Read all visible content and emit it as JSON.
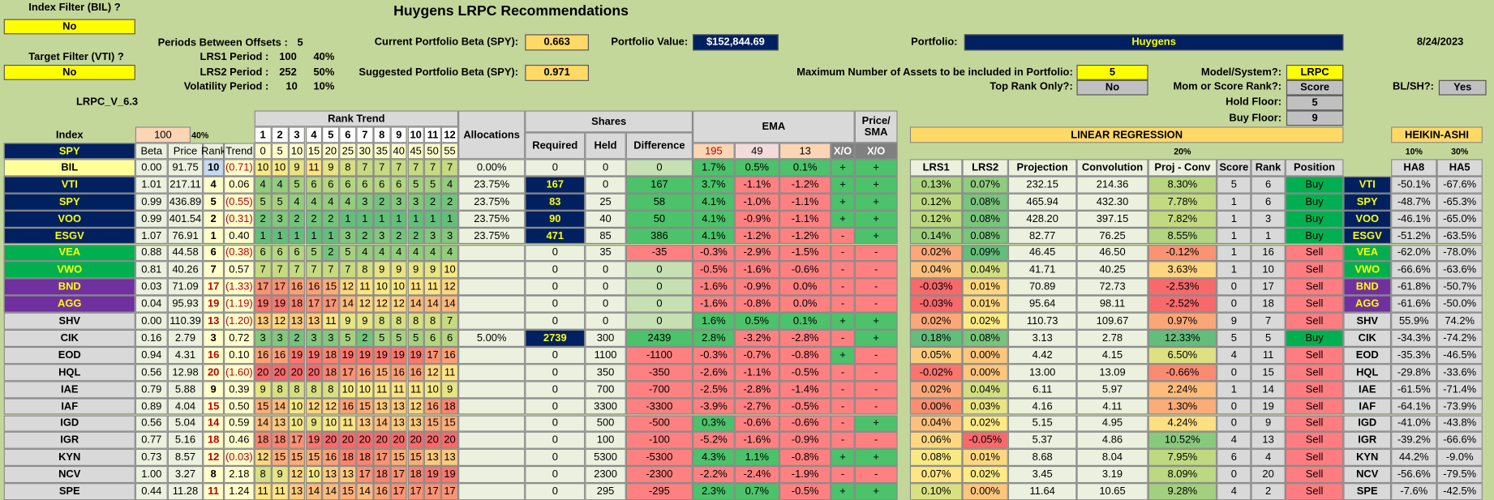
{
  "header": {
    "title": "Huygens LRPC Recommendations",
    "index_filter_label": "Index Filter (BIL) ?",
    "index_filter": "No",
    "target_filter_label": "Target Filter (VTI) ?",
    "target_filter": "No",
    "version": "LRPC_V_6.3",
    "periods_label": "Periods Between Offsets :",
    "periods": "5",
    "lrs1_label": "LRS1 Period :",
    "lrs1_period": "100",
    "lrs1_weight": "40%",
    "lrs2_label": "LRS2 Period :",
    "lrs2_period": "252",
    "lrs2_weight": "50%",
    "vol_label": "Volatility Period :",
    "vol_period": "10",
    "vol_weight": "10%",
    "current_beta_label": "Current Portfolio Beta (SPY):",
    "current_beta": "0.663",
    "suggested_beta_label": "Suggested Portfolio Beta (SPY):",
    "suggested_beta": "0.971",
    "value_label": "Portfolio Value:",
    "value": "$152,844.69",
    "portfolio_label": "Portfolio:",
    "portfolio": "Huygens",
    "date": "8/24/2023",
    "max_assets_label": "Maximum Number of Assets to be included in Portfolio:",
    "max_assets": "5",
    "top_rank_label": "Top Rank Only?:",
    "top_rank": "No",
    "model_label": "Model/System?:",
    "model": "LRPC",
    "mom_label": "Mom or Score Rank?:",
    "mom": "Score",
    "hold_floor_label": "Hold Floor:",
    "hold_floor": "5",
    "buy_floor_label": "Buy Floor:",
    "buy_floor": "9",
    "blsh_label": "BL/SH?:",
    "blsh": "Yes"
  },
  "table": {
    "headers": {
      "index": "Index",
      "index_value": "100",
      "index_pct": "40%",
      "spy": "SPY",
      "beta": "Beta",
      "price": "Price",
      "rank": "Rank",
      "trend": "Trend",
      "rank_trend": "Rank Trend",
      "periods": [
        "1",
        "2",
        "3",
        "4",
        "5",
        "6",
        "7",
        "8",
        "9",
        "10",
        "11",
        "12"
      ],
      "offsets": [
        "0",
        "5",
        "10",
        "15",
        "20",
        "25",
        "30",
        "35",
        "40",
        "45",
        "50",
        "55"
      ],
      "allocations": "Allocations",
      "shares": "Shares",
      "required": "Required",
      "held": "Held",
      "difference": "Difference",
      "ema": "EMA",
      "ema_periods": [
        "195",
        "49",
        "13"
      ],
      "xo": "X/O",
      "price_sma": "Price/ SMA",
      "sma_xo": "X/O",
      "linear_regression": "LINEAR REGRESSION",
      "lr_pct": "20%",
      "heikin_ashi": "HEIKIN-ASHI",
      "ha_pcts": [
        "10%",
        "30%"
      ],
      "right": [
        "LRS1",
        "LRS2",
        "Projection",
        "Convolution",
        "Proj - Conv",
        "Score",
        "Rank",
        "Position"
      ],
      "ha": [
        "HA8",
        "HA5"
      ]
    },
    "rows": [
      {
        "n": "BIL",
        "color": "#ffff99",
        "beta": "0.00",
        "price": "91.75",
        "rank": 10,
        "trend": "(0.71)",
        "rt": [
          10,
          10,
          9,
          11,
          9,
          8,
          7,
          7,
          7,
          7,
          7,
          7
        ],
        "alloc": "0.00%",
        "req": 0,
        "held": 0,
        "diff": 0,
        "e195": "1.7%",
        "e49": "0.5%",
        "e13": "0.1%",
        "xo": "+",
        "sxo": "+"
      },
      {
        "n": "VTI",
        "color": "#002060",
        "beta": "1.01",
        "price": "217.11",
        "rank": 4,
        "trend": "0.06",
        "rt": [
          4,
          4,
          5,
          6,
          6,
          6,
          6,
          6,
          6,
          5,
          5,
          4
        ],
        "alloc": "23.75%",
        "req": 167,
        "held": 0,
        "diff": 167,
        "e195": "3.7%",
        "e49": "-1.1%",
        "e13": "-1.2%",
        "xo": "+",
        "sxo": "+",
        "lrs1": "0.13%",
        "lrs2": "0.07%",
        "proj": "232.15",
        "conv": "214.36",
        "pc": "8.30%",
        "score": 5,
        "rank2": 6,
        "pos": "Buy",
        "ha8": "-50.1%",
        "ha5": "-67.6%"
      },
      {
        "n": "SPY",
        "color": "#002060",
        "beta": "0.99",
        "price": "436.89",
        "rank": 5,
        "trend": "(0.55)",
        "rt": [
          5,
          5,
          4,
          4,
          4,
          4,
          3,
          2,
          3,
          3,
          2,
          2
        ],
        "alloc": "23.75%",
        "req": 83,
        "held": 25,
        "diff": 58,
        "e195": "4.1%",
        "e49": "-1.0%",
        "e13": "-1.1%",
        "xo": "+",
        "sxo": "+",
        "lrs1": "0.12%",
        "lrs2": "0.08%",
        "proj": "465.94",
        "conv": "432.30",
        "pc": "7.78%",
        "score": 1,
        "rank2": 6,
        "pos": "Buy",
        "ha8": "-48.7%",
        "ha5": "-65.3%"
      },
      {
        "n": "VOO",
        "color": "#002060",
        "beta": "0.99",
        "price": "401.54",
        "rank": 2,
        "trend": "(0.31)",
        "rt": [
          2,
          3,
          2,
          2,
          2,
          1,
          1,
          1,
          1,
          1,
          1,
          1
        ],
        "alloc": "23.75%",
        "req": 90,
        "held": 40,
        "diff": 50,
        "e195": "4.1%",
        "e49": "-0.9%",
        "e13": "-1.1%",
        "xo": "+",
        "sxo": "+",
        "lrs1": "0.12%",
        "lrs2": "0.08%",
        "proj": "428.20",
        "conv": "397.15",
        "pc": "7.82%",
        "score": 1,
        "rank2": 3,
        "pos": "Buy",
        "ha8": "-46.1%",
        "ha5": "-65.0%"
      },
      {
        "n": "ESGV",
        "color": "#002060",
        "beta": "1.07",
        "price": "76.91",
        "rank": 1,
        "trend": "0.40",
        "rt": [
          1,
          1,
          1,
          1,
          1,
          3,
          2,
          3,
          2,
          2,
          3,
          3
        ],
        "alloc": "23.75%",
        "req": 471,
        "held": 85,
        "diff": 386,
        "e195": "4.1%",
        "e49": "-1.2%",
        "e13": "-1.2%",
        "xo": "-",
        "sxo": "+",
        "lrs1": "0.14%",
        "lrs2": "0.08%",
        "proj": "82.77",
        "conv": "76.25",
        "pc": "8.55%",
        "score": 1,
        "rank2": 1,
        "pos": "Buy",
        "ha8": "-51.2%",
        "ha5": "-63.5%"
      },
      {
        "n": "VEA",
        "color": "#00b050",
        "beta": "0.88",
        "price": "44.58",
        "rank": 6,
        "trend": "(0.38)",
        "rt": [
          6,
          6,
          6,
          5,
          2,
          5,
          4,
          4,
          4,
          4,
          4,
          4
        ],
        "req": 0,
        "held": 35,
        "diff": -35,
        "e195": "-0.3%",
        "e49": "-2.9%",
        "e13": "-1.5%",
        "xo": "-",
        "sxo": "-",
        "lrs1": "0.02%",
        "lrs2": "0.09%",
        "proj": "46.45",
        "conv": "46.50",
        "pc": "-0.12%",
        "score": 1,
        "rank2": 16,
        "pos": "Sell",
        "ha8": "-62.0%",
        "ha5": "-78.0%"
      },
      {
        "n": "VWO",
        "color": "#00b050",
        "beta": "0.81",
        "price": "40.26",
        "rank": 7,
        "trend": "0.57",
        "rt": [
          7,
          7,
          7,
          7,
          7,
          7,
          8,
          9,
          9,
          9,
          9,
          10
        ],
        "req": 0,
        "held": 0,
        "diff": 0,
        "e195": "-0.5%",
        "e49": "-1.6%",
        "e13": "-0.6%",
        "xo": "-",
        "sxo": "-",
        "lrs1": "0.04%",
        "lrs2": "0.04%",
        "proj": "41.71",
        "conv": "40.25",
        "pc": "3.63%",
        "score": 1,
        "rank2": 10,
        "pos": "Sell",
        "ha8": "-66.6%",
        "ha5": "-63.6%"
      },
      {
        "n": "BND",
        "color": "#7030a0",
        "beta": "0.03",
        "price": "71.09",
        "rank": 17,
        "trend": "(1.33)",
        "rt": [
          17,
          17,
          16,
          16,
          15,
          12,
          11,
          10,
          10,
          11,
          11,
          12
        ],
        "req": 0,
        "held": 0,
        "diff": 0,
        "e195": "-1.6%",
        "e49": "-0.9%",
        "e13": "0.0%",
        "xo": "-",
        "sxo": "-",
        "lrs1": "-0.03%",
        "lrs2": "0.01%",
        "proj": "70.89",
        "conv": "72.73",
        "pc": "-2.53%",
        "score": 0,
        "rank2": 17,
        "pos": "Sell",
        "ha8": "-61.8%",
        "ha5": "-50.7%"
      },
      {
        "n": "AGG",
        "color": "#7030a0",
        "beta": "0.04",
        "price": "95.93",
        "rank": 19,
        "trend": "(1.19)",
        "rt": [
          19,
          19,
          18,
          17,
          17,
          14,
          12,
          12,
          12,
          14,
          14,
          14
        ],
        "req": 0,
        "held": 0,
        "diff": 0,
        "e195": "-1.6%",
        "e49": "-0.8%",
        "e13": "0.0%",
        "xo": "-",
        "sxo": "-",
        "lrs1": "-0.03%",
        "lrs2": "0.01%",
        "proj": "95.64",
        "conv": "98.11",
        "pc": "-2.52%",
        "score": 0,
        "rank2": 18,
        "pos": "Sell",
        "ha8": "-61.6%",
        "ha5": "-50.0%"
      },
      {
        "n": "SHV",
        "color": "#d9d9d9",
        "beta": "0.00",
        "price": "110.39",
        "rank": 13,
        "trend": "(1.20)",
        "rt": [
          13,
          12,
          13,
          13,
          11,
          9,
          9,
          8,
          8,
          8,
          8,
          7
        ],
        "req": 0,
        "held": 0,
        "diff": 0,
        "e195": "1.6%",
        "e49": "0.5%",
        "e13": "0.1%",
        "xo": "+",
        "sxo": "+",
        "lrs1": "0.02%",
        "lrs2": "0.02%",
        "proj": "110.73",
        "conv": "109.67",
        "pc": "0.97%",
        "score": 9,
        "rank2": 7,
        "pos": "Sell",
        "ha8": "55.9%",
        "ha5": "74.2%"
      },
      {
        "n": "CIK",
        "color": "#d9d9d9",
        "beta": "0.16",
        "price": "2.79",
        "rank": 3,
        "trend": "0.72",
        "rt": [
          3,
          3,
          2,
          3,
          3,
          5,
          2,
          5,
          5,
          5,
          6,
          6
        ],
        "alloc": "5.00%",
        "req": 2739,
        "held": 300,
        "diff": 2439,
        "e195": "2.8%",
        "e49": "-3.2%",
        "e13": "-2.8%",
        "xo": "-",
        "sxo": "+",
        "lrs1": "0.18%",
        "lrs2": "0.08%",
        "proj": "3.13",
        "conv": "2.78",
        "pc": "12.33%",
        "score": 5,
        "rank2": 5,
        "pos": "Buy",
        "ha8": "-34.3%",
        "ha5": "-74.2%"
      },
      {
        "n": "EOD",
        "color": "#d9d9d9",
        "beta": "0.94",
        "price": "4.31",
        "rank": 16,
        "trend": "0.10",
        "rt": [
          16,
          16,
          19,
          19,
          18,
          19,
          19,
          19,
          19,
          19,
          17,
          16
        ],
        "req": 0,
        "held": 1100,
        "diff": -1100,
        "e195": "-0.3%",
        "e49": "-0.7%",
        "e13": "-0.8%",
        "xo": "+",
        "sxo": "-",
        "lrs1": "0.05%",
        "lrs2": "0.00%",
        "proj": "4.42",
        "conv": "4.15",
        "pc": "6.50%",
        "score": 4,
        "rank2": 11,
        "pos": "Sell",
        "ha8": "-35.3%",
        "ha5": "-46.5%"
      },
      {
        "n": "HQL",
        "color": "#d9d9d9",
        "beta": "0.56",
        "price": "12.98",
        "rank": 20,
        "trend": "(1.60)",
        "rt": [
          20,
          20,
          20,
          20,
          18,
          17,
          16,
          15,
          16,
          16,
          12,
          11
        ],
        "req": 0,
        "held": 350,
        "diff": -350,
        "e195": "-2.6%",
        "e49": "-1.1%",
        "e13": "-0.5%",
        "xo": "-",
        "sxo": "-",
        "lrs1": "-0.02%",
        "lrs2": "0.00%",
        "proj": "13.00",
        "conv": "13.09",
        "pc": "-0.66%",
        "score": 0,
        "rank2": 15,
        "pos": "Sell",
        "ha8": "-29.8%",
        "ha5": "-33.6%"
      },
      {
        "n": "IAE",
        "color": "#d9d9d9",
        "beta": "0.79",
        "price": "5.88",
        "rank": 9,
        "trend": "0.39",
        "rt": [
          9,
          8,
          8,
          8,
          8,
          10,
          10,
          11,
          11,
          11,
          10,
          9
        ],
        "req": 0,
        "held": 700,
        "diff": -700,
        "e195": "-2.5%",
        "e49": "-2.8%",
        "e13": "-1.4%",
        "xo": "-",
        "sxo": "-",
        "lrs1": "0.02%",
        "lrs2": "0.04%",
        "proj": "6.11",
        "conv": "5.97",
        "pc": "2.24%",
        "score": 1,
        "rank2": 14,
        "pos": "Sell",
        "ha8": "-61.5%",
        "ha5": "-71.4%"
      },
      {
        "n": "IAF",
        "color": "#d9d9d9",
        "beta": "0.89",
        "price": "4.04",
        "rank": 15,
        "trend": "0.50",
        "rt": [
          15,
          14,
          10,
          12,
          12,
          16,
          15,
          13,
          13,
          12,
          16,
          18
        ],
        "req": 0,
        "held": 3300,
        "diff": -3300,
        "e195": "-3.9%",
        "e49": "-2.7%",
        "e13": "-0.5%",
        "xo": "-",
        "sxo": "-",
        "lrs1": "0.00%",
        "lrs2": "0.03%",
        "proj": "4.16",
        "conv": "4.11",
        "pc": "1.30%",
        "score": 0,
        "rank2": 19,
        "pos": "Sell",
        "ha8": "-64.1%",
        "ha5": "-73.9%"
      },
      {
        "n": "IGD",
        "color": "#d9d9d9",
        "beta": "0.56",
        "price": "5.04",
        "rank": 14,
        "trend": "0.59",
        "rt": [
          14,
          13,
          10,
          9,
          10,
          11,
          13,
          14,
          13,
          13,
          15,
          15
        ],
        "req": 0,
        "held": 500,
        "diff": -500,
        "e195": "0.3%",
        "e49": "-0.6%",
        "e13": "-0.6%",
        "xo": "-",
        "sxo": "+",
        "lrs1": "0.04%",
        "lrs2": "0.02%",
        "proj": "5.15",
        "conv": "4.95",
        "pc": "4.24%",
        "score": 0,
        "rank2": 9,
        "pos": "Sell",
        "ha8": "-41.0%",
        "ha5": "-43.8%"
      },
      {
        "n": "IGR",
        "color": "#d9d9d9",
        "beta": "0.77",
        "price": "5.16",
        "rank": 18,
        "trend": "0.46",
        "rt": [
          18,
          18,
          17,
          19,
          20,
          20,
          20,
          20,
          20,
          20,
          20,
          20
        ],
        "req": 0,
        "held": 100,
        "diff": -100,
        "e195": "-5.2%",
        "e49": "-1.6%",
        "e13": "-0.9%",
        "xo": "-",
        "sxo": "-",
        "lrs1": "0.06%",
        "lrs2": "-0.05%",
        "proj": "5.37",
        "conv": "4.86",
        "pc": "10.52%",
        "score": 4,
        "rank2": 13,
        "pos": "Sell",
        "ha8": "-39.2%",
        "ha5": "-66.6%"
      },
      {
        "n": "KYN",
        "color": "#d9d9d9",
        "beta": "0.73",
        "price": "8.57",
        "rank": 12,
        "trend": "(0.03)",
        "rt": [
          12,
          15,
          15,
          15,
          16,
          18,
          18,
          17,
          15,
          15,
          13,
          13
        ],
        "req": 0,
        "held": 5300,
        "diff": -5300,
        "e195": "4.3%",
        "e49": "1.1%",
        "e13": "-0.8%",
        "xo": "+",
        "sxo": "+",
        "lrs1": "0.08%",
        "lrs2": "0.01%",
        "proj": "8.68",
        "conv": "8.04",
        "pc": "7.95%",
        "score": 6,
        "rank2": 4,
        "pos": "Sell",
        "ha8": "44.2%",
        "ha5": "-9.0%"
      },
      {
        "n": "NCV",
        "color": "#d9d9d9",
        "beta": "1.00",
        "price": "3.27",
        "rank": 8,
        "trend": "2.18",
        "rt": [
          8,
          9,
          12,
          10,
          13,
          13,
          17,
          18,
          17,
          18,
          19,
          19
        ],
        "req": 0,
        "held": 2300,
        "diff": -2300,
        "e195": "-2.2%",
        "e49": "-2.4%",
        "e13": "-1.9%",
        "xo": "-",
        "sxo": "-",
        "lrs1": "0.07%",
        "lrs2": "0.02%",
        "proj": "3.45",
        "conv": "3.19",
        "pc": "8.09%",
        "score": 0,
        "rank2": 20,
        "pos": "Sell",
        "ha8": "-56.6%",
        "ha5": "-79.5%"
      },
      {
        "n": "SPE",
        "color": "#d9d9d9",
        "beta": "0.44",
        "price": "11.28",
        "rank": 11,
        "trend": "1.24",
        "rt": [
          11,
          11,
          13,
          14,
          14,
          15,
          14,
          16,
          17,
          17,
          17,
          17
        ],
        "req": 0,
        "held": 295,
        "diff": -295,
        "e195": "2.3%",
        "e49": "0.7%",
        "e13": "-0.5%",
        "xo": "+",
        "sxo": "+",
        "lrs1": "0.10%",
        "lrs2": "0.00%",
        "proj": "11.64",
        "conv": "10.65",
        "pc": "9.28%",
        "score": 4,
        "rank2": 2,
        "pos": "Sell",
        "ha8": "-7.6%",
        "ha5": "-42.5%"
      }
    ]
  }
}
